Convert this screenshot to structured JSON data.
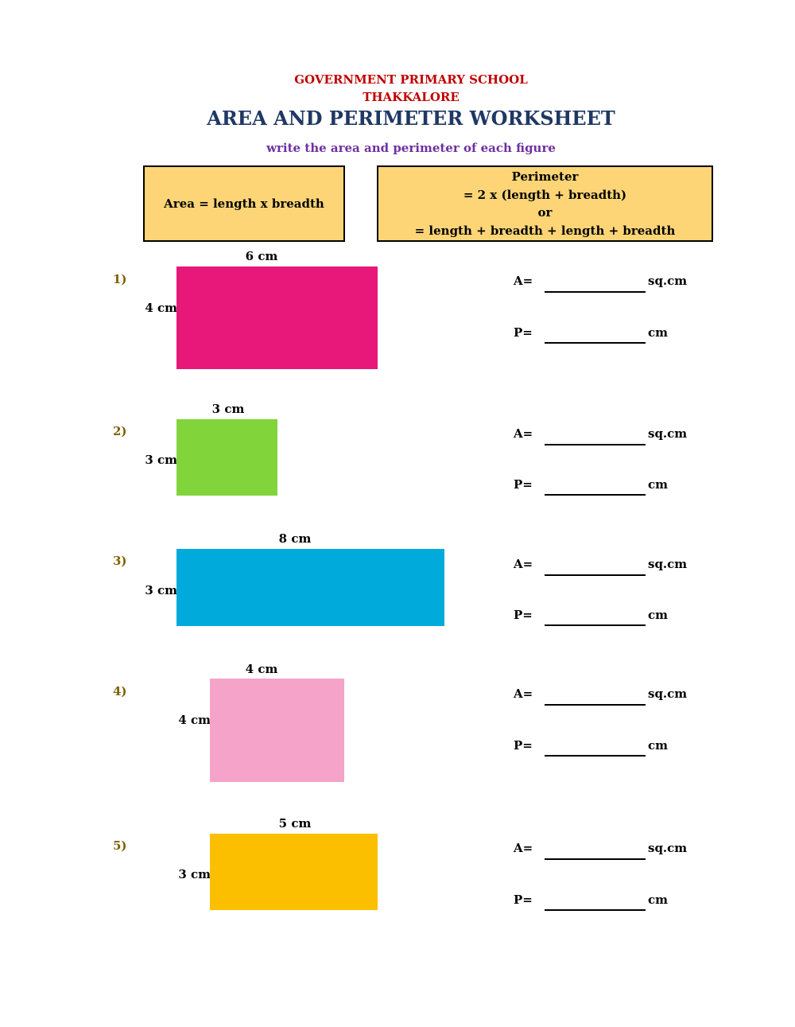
{
  "header": {
    "school": "GOVERNMENT PRIMARY SCHOOL",
    "place": "THAKKALORE",
    "title": "AREA AND PERIMETER WORKSHEET",
    "instruction": "write the area and perimeter of each figure"
  },
  "formulas": {
    "area": "Area = length x breadth",
    "perimeter_lines": [
      "Perimeter",
      "= 2 x (length + breadth)",
      "or",
      "= length + breadth + length + breadth"
    ]
  },
  "questions": [
    {
      "number": "1)",
      "top_label": "6 cm",
      "side_label": "4 cm",
      "color": "#e8177a"
    },
    {
      "number": "2)",
      "top_label": "3 cm",
      "side_label": "3 cm",
      "color": "#82d43b"
    },
    {
      "number": "3)",
      "top_label": "8 cm",
      "side_label": "3 cm",
      "color": "#00aadb"
    },
    {
      "number": "4)",
      "top_label": "4 cm",
      "side_label": "4 cm",
      "color": "#f5a3c9"
    },
    {
      "number": "5)",
      "top_label": "5 cm",
      "side_label": "3 cm",
      "color": "#fbbf00"
    }
  ],
  "answer_labels": {
    "area_prefix": "A=",
    "area_unit": "sq.cm",
    "perimeter_prefix": "P=",
    "perimeter_unit": "cm"
  }
}
